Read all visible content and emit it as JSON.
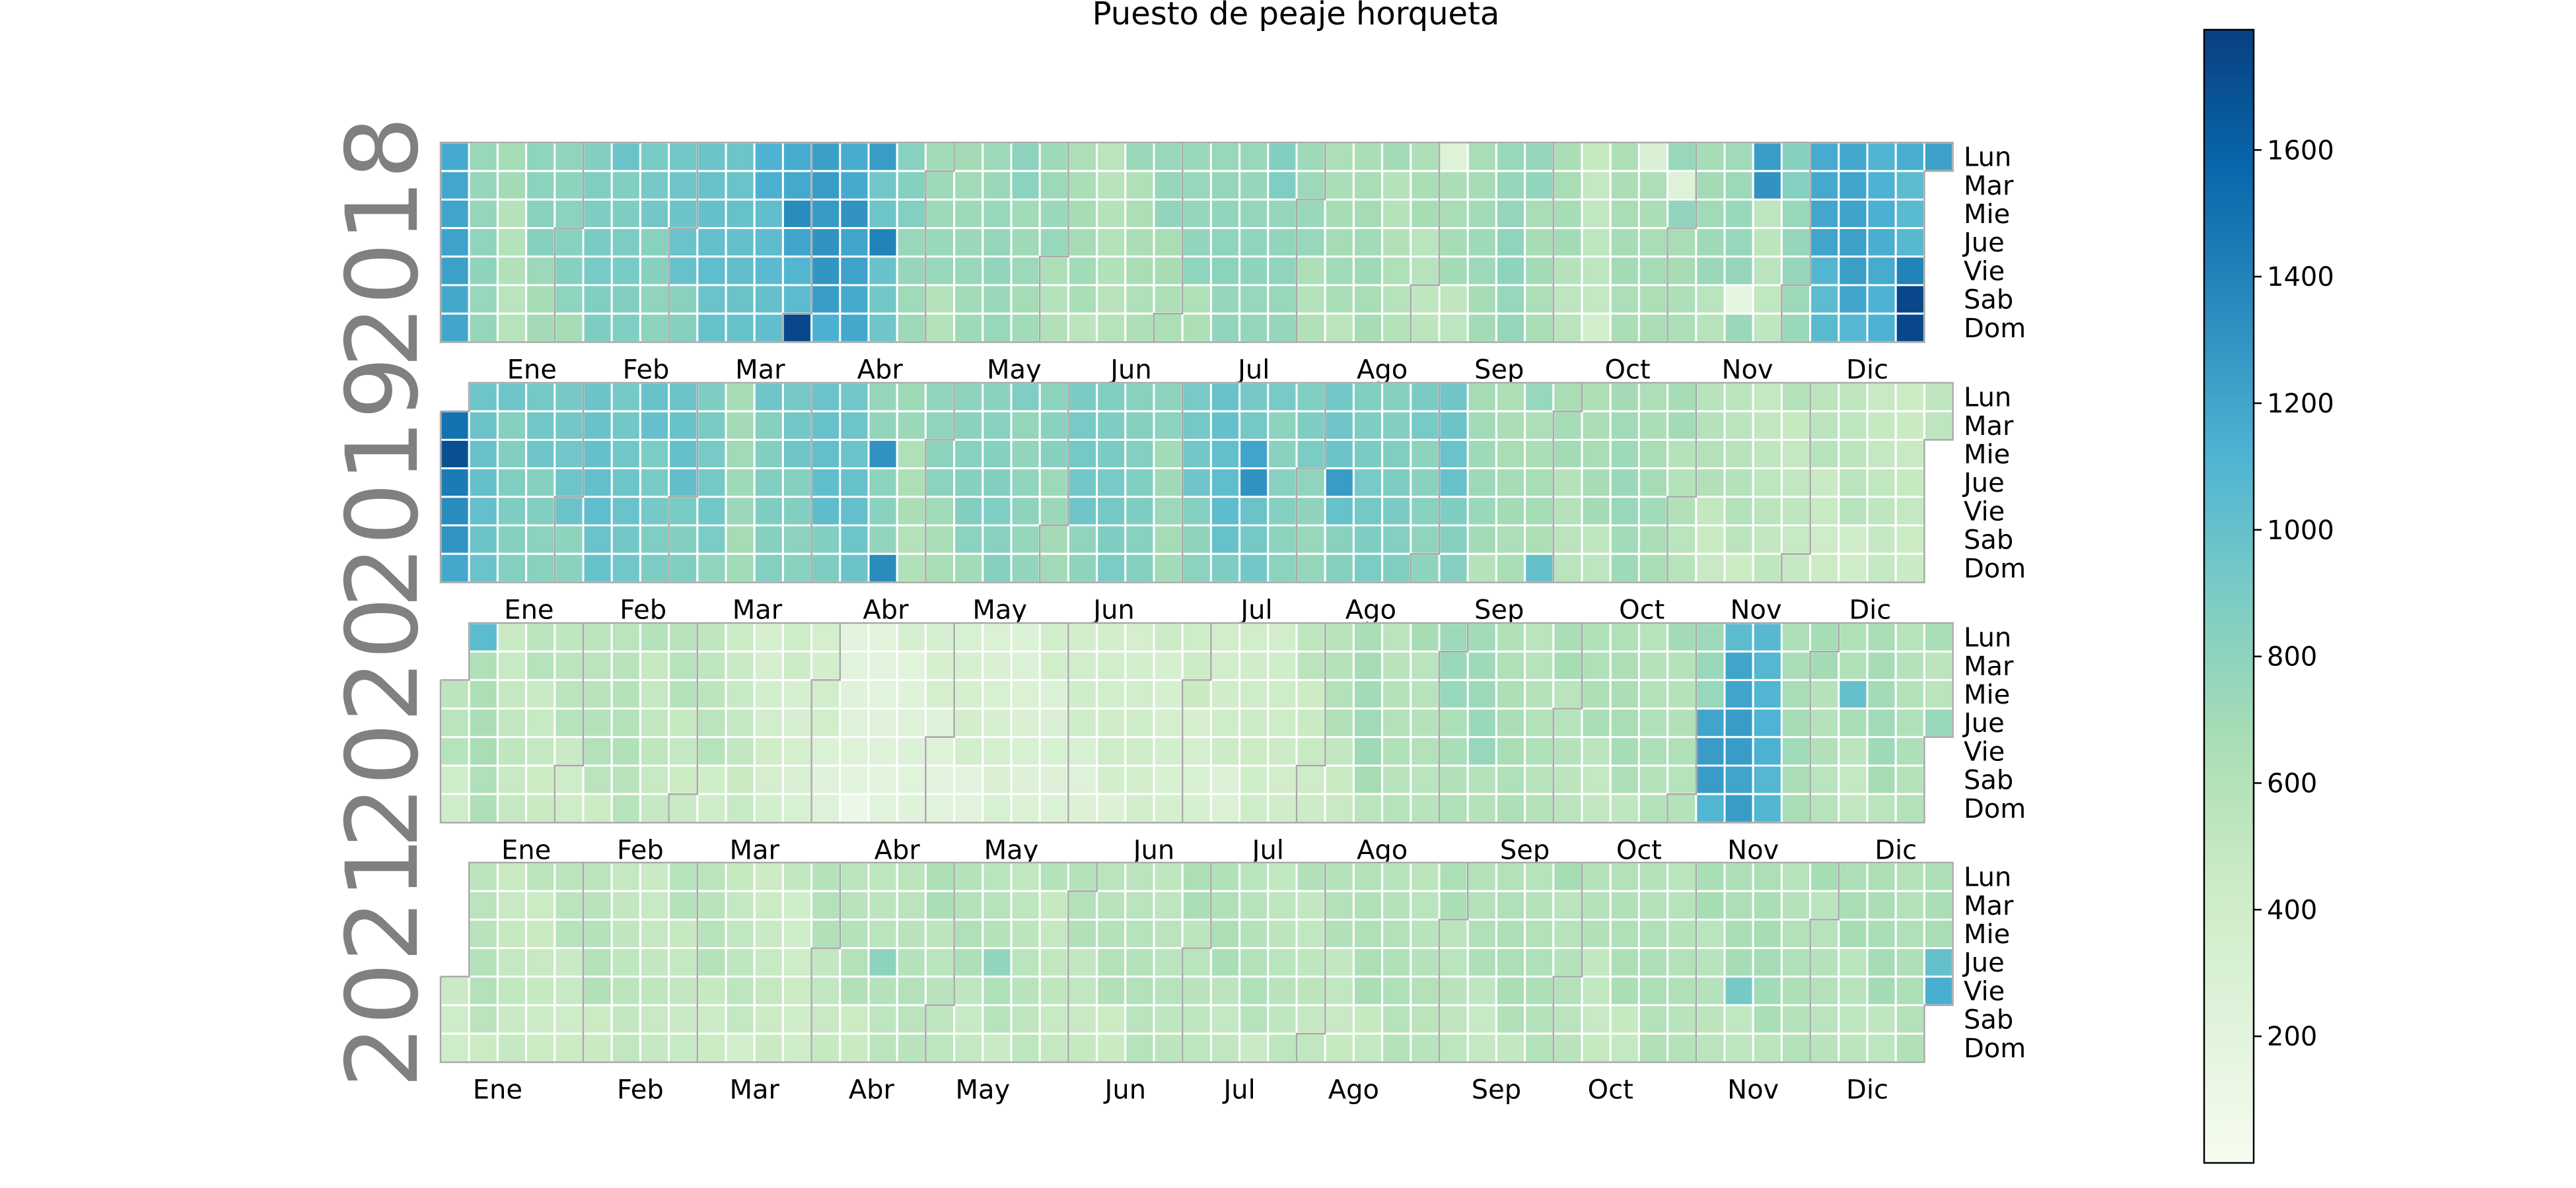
{
  "chart_data": {
    "type": "heatmap",
    "title": "Puesto de peaje horqueta",
    "years": [
      2018,
      2019,
      2020,
      2021
    ],
    "weekday_labels": [
      "Lun",
      "Mar",
      "Mie",
      "Jue",
      "Vie",
      "Sab",
      "Dom"
    ],
    "month_labels": [
      "Ene",
      "Feb",
      "Mar",
      "Abr",
      "May",
      "Jun",
      "Jul",
      "Ago",
      "Sep",
      "Oct",
      "Nov",
      "Dic"
    ],
    "colorbar": {
      "min": 0,
      "max": 1790,
      "ticks": [
        200,
        400,
        600,
        800,
        1000,
        1200,
        1400,
        1600
      ]
    },
    "colorscale": [
      "#f7fcf0",
      "#e0f3db",
      "#ccebc5",
      "#a8ddb5",
      "#7bccc4",
      "#4eb3d3",
      "#2b8cbe",
      "#0868ac",
      "#084081"
    ],
    "weekly_levels": {
      "2018": [
        1200,
        800,
        640,
        780,
        800,
        900,
        920,
        880,
        940,
        1000,
        1020,
        1080,
        1150,
        1250,
        1200,
        1000,
        800,
        700,
        720,
        780,
        760,
        700,
        660,
        600,
        680,
        720,
        740,
        780,
        800,
        820,
        700,
        660,
        700,
        640,
        620,
        640,
        700,
        800,
        720,
        640,
        500,
        680,
        700,
        720,
        680,
        740,
        560,
        800,
        1150,
        1200,
        1150,
        1100,
        1200,
        800
      ],
      "2019": [
        1300,
        1000,
        900,
        900,
        920,
        1000,
        980,
        950,
        960,
        900,
        720,
        900,
        900,
        980,
        980,
        820,
        680,
        760,
        820,
        860,
        820,
        780,
        900,
        900,
        880,
        760,
        900,
        1000,
        960,
        860,
        840,
        940,
        900,
        900,
        860,
        940,
        700,
        680,
        700,
        640,
        640,
        720,
        700,
        640,
        560,
        560,
        540,
        540,
        520,
        520,
        500,
        500,
        480,
        520
      ],
      "2020": [
        520,
        640,
        520,
        520,
        520,
        560,
        600,
        540,
        540,
        520,
        480,
        400,
        380,
        340,
        220,
        240,
        280,
        300,
        320,
        320,
        320,
        340,
        360,
        380,
        400,
        380,
        400,
        380,
        420,
        440,
        500,
        560,
        680,
        600,
        620,
        700,
        700,
        640,
        620,
        620,
        600,
        640,
        620,
        640,
        700,
        1000,
        1100,
        700,
        640,
        600,
        680,
        620,
        600,
        600
      ],
      "2021": [
        520,
        560,
        500,
        500,
        520,
        560,
        520,
        520,
        540,
        540,
        500,
        480,
        460,
        560,
        560,
        560,
        600,
        600,
        580,
        580,
        560,
        540,
        560,
        560,
        580,
        580,
        600,
        600,
        580,
        560,
        560,
        560,
        600,
        600,
        600,
        600,
        580,
        620,
        620,
        620,
        560,
        600,
        620,
        620,
        620,
        620,
        660,
        620,
        620,
        620,
        640,
        620,
        700,
        780
      ]
    },
    "highlights": {
      "2018": [
        [
          12,
          2,
          1350
        ],
        [
          12,
          6,
          1750
        ],
        [
          13,
          3,
          1300
        ],
        [
          14,
          2,
          1300
        ],
        [
          15,
          0,
          1250
        ],
        [
          15,
          3,
          1400
        ],
        [
          35,
          0,
          260
        ],
        [
          42,
          0,
          300
        ],
        [
          43,
          1,
          260
        ],
        [
          45,
          5,
          180
        ],
        [
          46,
          1,
          1300
        ],
        [
          46,
          0,
          1250
        ],
        [
          51,
          5,
          1750
        ],
        [
          51,
          6,
          1750
        ],
        [
          51,
          4,
          1400
        ]
      ],
      "2019": [
        [
          0,
          1,
          1500
        ],
        [
          0,
          2,
          1700
        ],
        [
          0,
          3,
          1450
        ],
        [
          15,
          6,
          1350
        ],
        [
          15,
          2,
          1300
        ],
        [
          28,
          3,
          1300
        ],
        [
          28,
          2,
          1200
        ],
        [
          31,
          3,
          1250
        ],
        [
          38,
          6,
          1000
        ]
      ],
      "2020": [
        [
          1,
          0,
          1050
        ],
        [
          44,
          3,
          1200
        ],
        [
          44,
          4,
          1250
        ],
        [
          44,
          5,
          1250
        ],
        [
          44,
          6,
          1100
        ],
        [
          45,
          0,
          1050
        ],
        [
          45,
          1,
          1200
        ],
        [
          45,
          2,
          1200
        ],
        [
          45,
          3,
          1250
        ],
        [
          45,
          4,
          1250
        ],
        [
          45,
          5,
          1200
        ],
        [
          45,
          6,
          1250
        ],
        [
          49,
          2,
          1000
        ],
        [
          52,
          3,
          750
        ]
      ],
      "2021": [
        [
          15,
          3,
          800
        ],
        [
          19,
          3,
          780
        ],
        [
          45,
          4,
          920
        ],
        [
          52,
          3,
          1000
        ],
        [
          52,
          4,
          1150
        ]
      ]
    }
  }
}
